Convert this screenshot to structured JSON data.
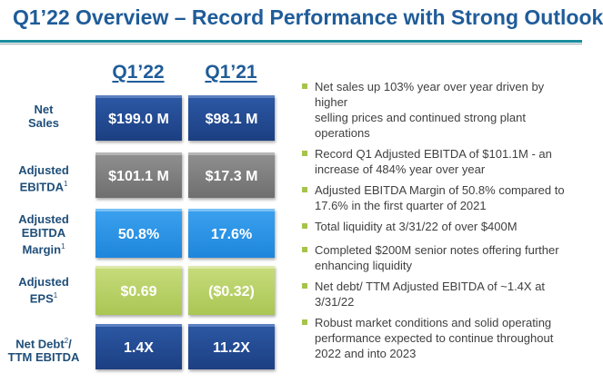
{
  "title": "Q1’22 Overview – Record Performance with Strong Outlook",
  "columns": [
    "Q1’22",
    "Q1’21"
  ],
  "rows": [
    {
      "label_lines": [
        "Net",
        "Sales"
      ],
      "sup": "",
      "q1_22": "$199.0 M",
      "q1_21": "$98.1 M",
      "color": "#2b57a3"
    },
    {
      "label_lines": [
        "Adjusted",
        "EBITDA"
      ],
      "sup": "1",
      "q1_22": "$101.1 M",
      "q1_21": "$17.3 M",
      "color": "#8e8e8e"
    },
    {
      "label_lines": [
        "Adjusted",
        "EBITDA",
        "Margin"
      ],
      "sup": "1",
      "q1_22": "50.8%",
      "q1_21": "17.6%",
      "color": "#3aa0ee"
    },
    {
      "label_lines": [
        "Adjusted",
        "EPS"
      ],
      "sup": "1",
      "q1_22": "$0.69",
      "q1_21": "($0.32)",
      "color": "#c6db7a"
    },
    {
      "label_lines": [
        "Net Debt",
        "TTM EBITDA"
      ],
      "sup": "2",
      "q1_22": "1.4X",
      "q1_21": "11.2X",
      "color": "#2b57a3"
    }
  ],
  "bullets": [
    [
      "Net sales up 103% year over year driven by higher",
      "selling prices and continued strong plant",
      "operations"
    ],
    [
      "Record Q1 Adjusted EBITDA of $101.1M - an",
      "increase of 484% year over year"
    ],
    [
      "Adjusted EBITDA Margin of 50.8% compared to",
      "17.6% in the first quarter of 2021"
    ],
    [
      "Total liquidity at 3/31/22 of over $400M"
    ],
    [
      "Completed $200M senior notes offering further",
      "enhancing liquidity"
    ],
    [
      "Net debt/ TTM Adjusted EBITDA of ~1.4X at",
      "3/31/22"
    ],
    [
      "Robust market conditions and solid operating",
      "performance expected to continue throughout",
      "2022 and into 2023"
    ]
  ]
}
